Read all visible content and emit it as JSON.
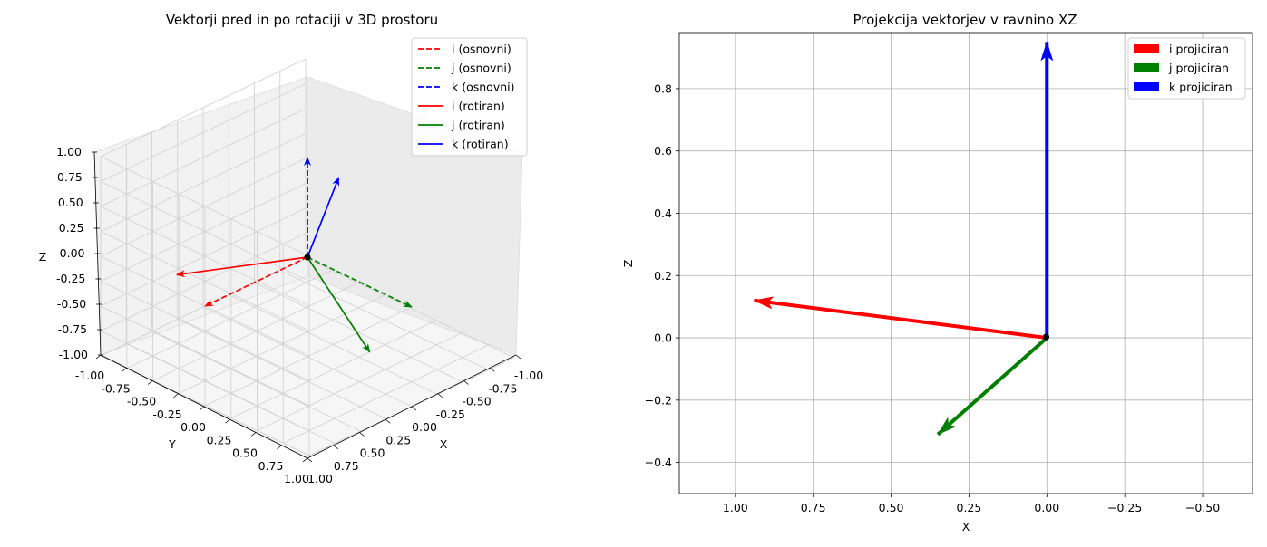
{
  "colors": {
    "i": "#ff0000",
    "j": "#008000",
    "k": "#0000ff",
    "grid": "#b0b0b0",
    "origin": "#000000"
  },
  "chart_data": [
    {
      "type": "line3d",
      "title": "Vektorji pred in po rotaciji v 3D prostoru",
      "xlabel": "X",
      "ylabel": "Y",
      "zlabel": "Z",
      "xlim": [
        -1,
        1
      ],
      "ylim": [
        -1,
        1
      ],
      "zlim": [
        -1,
        1
      ],
      "x_ticks": [
        "-1.00",
        "-0.75",
        "-0.50",
        "-0.25",
        "0.00",
        "0.25",
        "0.50",
        "0.75",
        "1.00"
      ],
      "y_ticks": [
        "-1.00",
        "-0.75",
        "-0.50",
        "-0.25",
        "0.00",
        "0.25",
        "0.50",
        "0.75",
        "1.00"
      ],
      "z_ticks": [
        "-1.00",
        "-0.75",
        "-0.50",
        "-0.25",
        "0.00",
        "0.25",
        "0.50",
        "0.75",
        "1.00"
      ],
      "legend_position": "top-right",
      "series": [
        {
          "name": "i (osnovni)",
          "color": "i",
          "style": "dashed",
          "vector": [
            1,
            0,
            0
          ]
        },
        {
          "name": "j (osnovni)",
          "color": "j",
          "style": "dashed",
          "vector": [
            0,
            1,
            0
          ]
        },
        {
          "name": "k (osnovni)",
          "color": "k",
          "style": "dashed",
          "vector": [
            0,
            0,
            1
          ]
        },
        {
          "name": "i (rotiran)",
          "color": "i",
          "style": "solid",
          "vector": [
            0.94,
            -0.33,
            0.12
          ]
        },
        {
          "name": "j (rotiran)",
          "color": "j",
          "style": "solid",
          "vector": [
            0.35,
            0.94,
            -0.31
          ]
        },
        {
          "name": "k (rotiran)",
          "color": "k",
          "style": "solid",
          "vector": [
            0.0,
            0.3,
            0.95
          ]
        }
      ]
    },
    {
      "type": "quiver",
      "title": "Projekcija vektorjev v ravnino XZ",
      "xlabel": "X",
      "ylabel": "Z",
      "xlim": [
        1.18,
        -0.66
      ],
      "ylim": [
        -0.5,
        0.98
      ],
      "x_ticks": [
        1.0,
        0.75,
        0.5,
        0.25,
        0.0,
        -0.25,
        -0.5
      ],
      "x_tick_labels": [
        "1.00",
        "0.75",
        "0.50",
        "0.25",
        "0.00",
        "−0.25",
        "−0.50"
      ],
      "y_ticks": [
        -0.4,
        -0.2,
        0.0,
        0.2,
        0.4,
        0.6,
        0.8
      ],
      "y_tick_labels": [
        "−0.4",
        "−0.2",
        "0.0",
        "0.2",
        "0.4",
        "0.6",
        "0.8"
      ],
      "grid": true,
      "legend_position": "top-right",
      "series": [
        {
          "name": "i projiciran",
          "color": "i",
          "x": 0.94,
          "z": 0.12
        },
        {
          "name": "j projiciran",
          "color": "j",
          "x": 0.35,
          "z": -0.31
        },
        {
          "name": "k projiciran",
          "color": "k",
          "x": 0.0,
          "z": 0.95
        }
      ]
    }
  ]
}
